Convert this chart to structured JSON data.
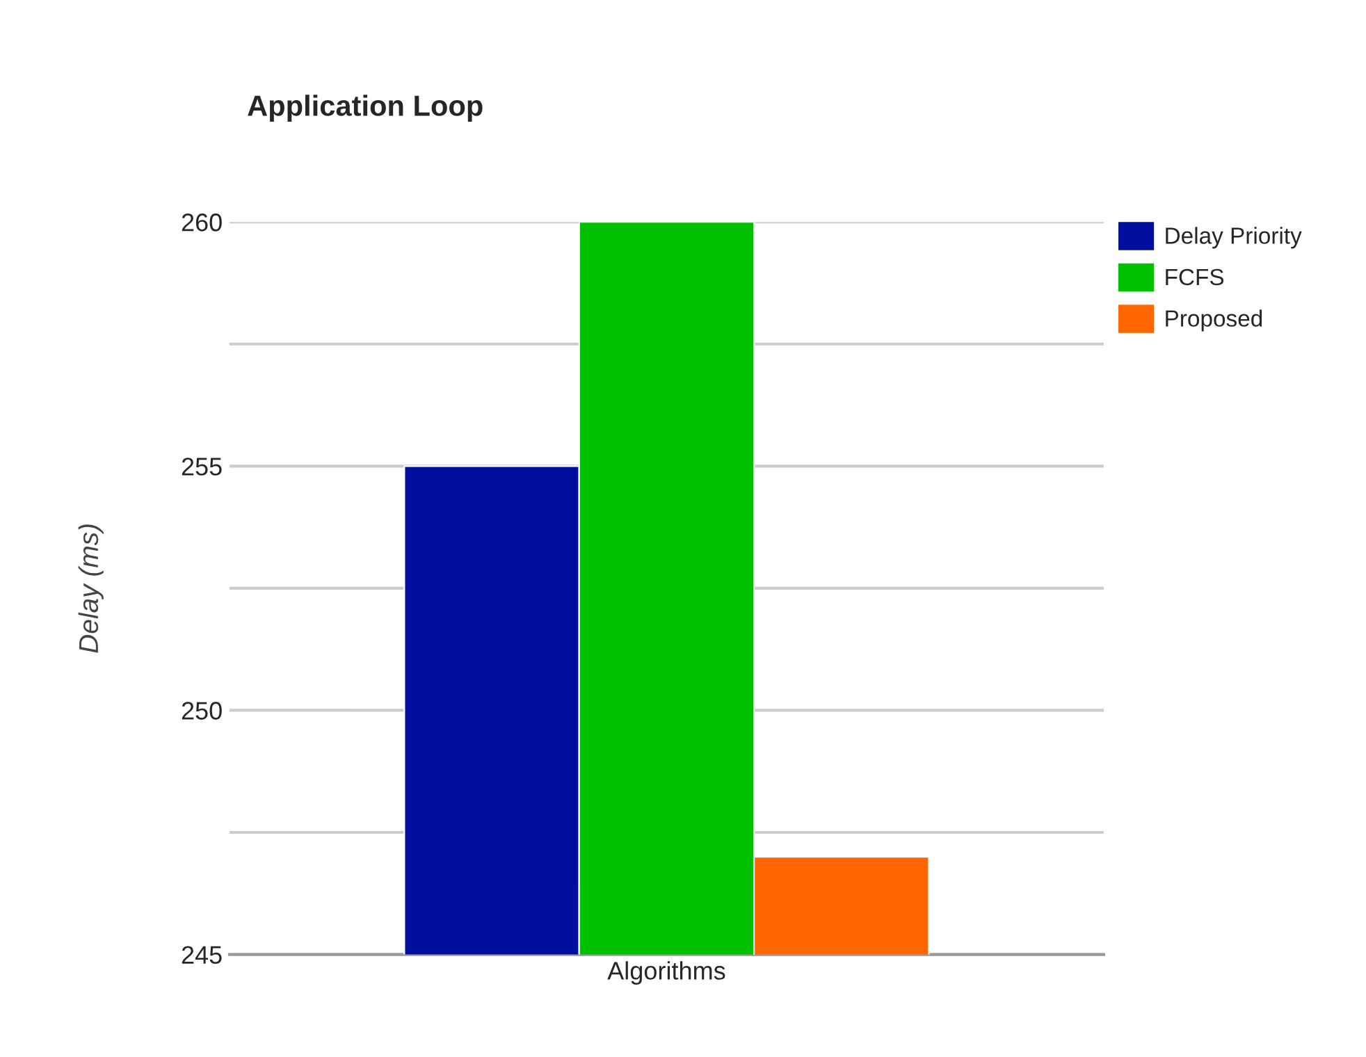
{
  "chart_data": {
    "type": "bar",
    "title": "Application Loop",
    "ylabel": "Delay (ms)",
    "categories": [
      "Algorithms"
    ],
    "series": [
      {
        "name": "Delay Priority",
        "color": "#000f9e",
        "values": [
          255
        ]
      },
      {
        "name": "FCFS",
        "color": "#00c000",
        "values": [
          260
        ]
      },
      {
        "name": "Proposed",
        "color": "#ff6600",
        "values": [
          247
        ]
      }
    ],
    "ylim": [
      245,
      260
    ],
    "yticks": [
      245,
      {
        "value": 247.5,
        "label": null
      },
      250,
      {
        "value": 252.5,
        "label": null
      },
      255,
      {
        "value": 257.5,
        "label": null
      },
      260
    ],
    "grid": "y",
    "legend": "top right"
  }
}
